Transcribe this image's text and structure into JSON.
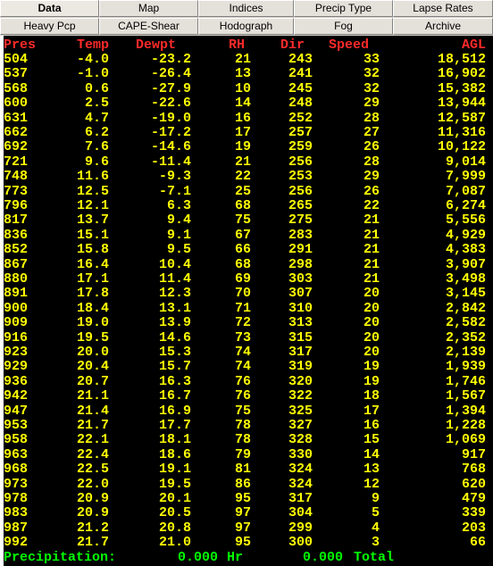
{
  "tabs": [
    {
      "label": "Data",
      "active": true
    },
    {
      "label": "Map"
    },
    {
      "label": "Indices"
    },
    {
      "label": "Precip Type"
    },
    {
      "label": "Lapse Rates"
    },
    {
      "label": "Heavy Pcp"
    },
    {
      "label": "CAPE-Shear"
    },
    {
      "label": "Hodograph"
    },
    {
      "label": "Fog"
    },
    {
      "label": "Archive"
    }
  ],
  "table": {
    "headers": [
      "Pres",
      "Temp",
      "Dewpt",
      "RH",
      "Dir",
      "Speed",
      "AGL"
    ],
    "rows": [
      [
        "504",
        "-4.0",
        "-23.2",
        "21",
        "243",
        "33",
        "18,512"
      ],
      [
        "537",
        "-1.0",
        "-26.4",
        "13",
        "241",
        "32",
        "16,902"
      ],
      [
        "568",
        "0.6",
        "-27.9",
        "10",
        "245",
        "32",
        "15,382"
      ],
      [
        "600",
        "2.5",
        "-22.6",
        "14",
        "248",
        "29",
        "13,944"
      ],
      [
        "631",
        "4.7",
        "-19.0",
        "16",
        "252",
        "28",
        "12,587"
      ],
      [
        "662",
        "6.2",
        "-17.2",
        "17",
        "257",
        "27",
        "11,316"
      ],
      [
        "692",
        "7.6",
        "-14.6",
        "19",
        "259",
        "26",
        "10,122"
      ],
      [
        "721",
        "9.6",
        "-11.4",
        "21",
        "256",
        "28",
        "9,014"
      ],
      [
        "748",
        "11.6",
        "-9.3",
        "22",
        "253",
        "29",
        "7,999"
      ],
      [
        "773",
        "12.5",
        "-7.1",
        "25",
        "256",
        "26",
        "7,087"
      ],
      [
        "796",
        "12.1",
        "6.3",
        "68",
        "265",
        "22",
        "6,274"
      ],
      [
        "817",
        "13.7",
        "9.4",
        "75",
        "275",
        "21",
        "5,556"
      ],
      [
        "836",
        "15.1",
        "9.1",
        "67",
        "283",
        "21",
        "4,929"
      ],
      [
        "852",
        "15.8",
        "9.5",
        "66",
        "291",
        "21",
        "4,383"
      ],
      [
        "867",
        "16.4",
        "10.4",
        "68",
        "298",
        "21",
        "3,907"
      ],
      [
        "880",
        "17.1",
        "11.4",
        "69",
        "303",
        "21",
        "3,498"
      ],
      [
        "891",
        "17.8",
        "12.3",
        "70",
        "307",
        "20",
        "3,145"
      ],
      [
        "900",
        "18.4",
        "13.1",
        "71",
        "310",
        "20",
        "2,842"
      ],
      [
        "909",
        "19.0",
        "13.9",
        "72",
        "313",
        "20",
        "2,582"
      ],
      [
        "916",
        "19.5",
        "14.6",
        "73",
        "315",
        "20",
        "2,352"
      ],
      [
        "923",
        "20.0",
        "15.3",
        "74",
        "317",
        "20",
        "2,139"
      ],
      [
        "929",
        "20.4",
        "15.7",
        "74",
        "319",
        "19",
        "1,939"
      ],
      [
        "936",
        "20.7",
        "16.3",
        "76",
        "320",
        "19",
        "1,746"
      ],
      [
        "942",
        "21.1",
        "16.7",
        "76",
        "322",
        "18",
        "1,567"
      ],
      [
        "947",
        "21.4",
        "16.9",
        "75",
        "325",
        "17",
        "1,394"
      ],
      [
        "953",
        "21.7",
        "17.7",
        "78",
        "327",
        "16",
        "1,228"
      ],
      [
        "958",
        "22.1",
        "18.1",
        "78",
        "328",
        "15",
        "1,069"
      ],
      [
        "963",
        "22.4",
        "18.6",
        "79",
        "330",
        "14",
        "917"
      ],
      [
        "968",
        "22.5",
        "19.1",
        "81",
        "324",
        "13",
        "768"
      ],
      [
        "973",
        "22.0",
        "19.5",
        "86",
        "324",
        "12",
        "620"
      ],
      [
        "978",
        "20.9",
        "20.1",
        "95",
        "317",
        "9",
        "479"
      ],
      [
        "983",
        "20.9",
        "20.5",
        "97",
        "304",
        "5",
        "339"
      ],
      [
        "987",
        "21.2",
        "20.8",
        "97",
        "299",
        "4",
        "203"
      ],
      [
        "992",
        "21.7",
        "21.0",
        "95",
        "300",
        "3",
        "66"
      ]
    ]
  },
  "footer": {
    "label": "Precipitation:",
    "value": "0.000",
    "unit": "Hr",
    "total_value": "0.000",
    "total_label": "Total"
  },
  "colors": {
    "header": "#ff2a2a",
    "values": "#ffff00",
    "footer": "#00ff00",
    "background": "#000000",
    "tab_face": "#d4d0c8"
  }
}
